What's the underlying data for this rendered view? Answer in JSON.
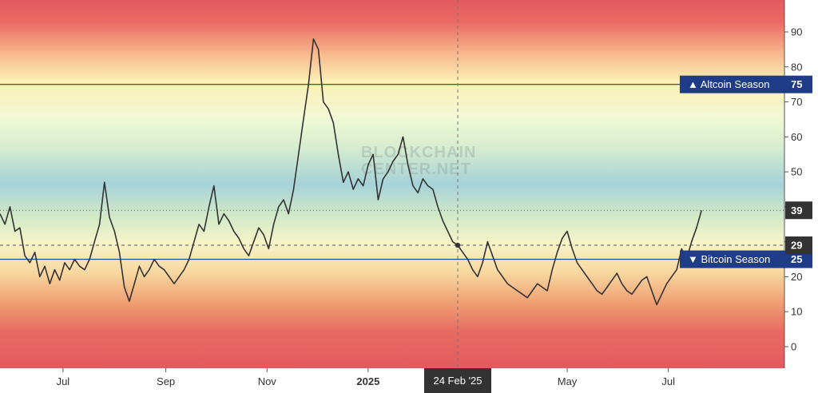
{
  "chart_data": {
    "type": "line",
    "title": "",
    "watermark": [
      "BLOCKCHAIN",
      "CENTER.NET"
    ],
    "xlabel": "",
    "ylabel": "",
    "ylim": [
      -6,
      99
    ],
    "y_ticks": [
      0,
      10,
      20,
      30,
      40,
      50,
      60,
      70,
      80,
      90
    ],
    "x_ticks": [
      {
        "label": "Jul",
        "date": "2024-07-01"
      },
      {
        "label": "Sep",
        "date": "2024-09-01"
      },
      {
        "label": "Nov",
        "date": "2024-11-01"
      },
      {
        "label": "2025",
        "date": "2025-01-01",
        "bold": true
      },
      {
        "label": "May",
        "date": "2025-05-01"
      },
      {
        "label": "Jul",
        "date": "2025-07-01"
      }
    ],
    "x_range": [
      "2024-05-24",
      "2025-09-09"
    ],
    "series": [
      {
        "color": "#333333",
        "points": [
          [
            "2024-05-24",
            38
          ],
          [
            "2024-05-27",
            35
          ],
          [
            "2024-05-30",
            40
          ],
          [
            "2024-06-02",
            33
          ],
          [
            "2024-06-05",
            34
          ],
          [
            "2024-06-08",
            26
          ],
          [
            "2024-06-11",
            24
          ],
          [
            "2024-06-14",
            27
          ],
          [
            "2024-06-17",
            20
          ],
          [
            "2024-06-20",
            23
          ],
          [
            "2024-06-23",
            18
          ],
          [
            "2024-06-26",
            22
          ],
          [
            "2024-06-29",
            19
          ],
          [
            "2024-07-02",
            24
          ],
          [
            "2024-07-05",
            22
          ],
          [
            "2024-07-08",
            25
          ],
          [
            "2024-07-11",
            23
          ],
          [
            "2024-07-14",
            22
          ],
          [
            "2024-07-17",
            25
          ],
          [
            "2024-07-20",
            30
          ],
          [
            "2024-07-23",
            35
          ],
          [
            "2024-07-26",
            47
          ],
          [
            "2024-07-29",
            37
          ],
          [
            "2024-08-01",
            33
          ],
          [
            "2024-08-04",
            27
          ],
          [
            "2024-08-07",
            17
          ],
          [
            "2024-08-10",
            13
          ],
          [
            "2024-08-13",
            18
          ],
          [
            "2024-08-16",
            23
          ],
          [
            "2024-08-19",
            20
          ],
          [
            "2024-08-22",
            22
          ],
          [
            "2024-08-25",
            25
          ],
          [
            "2024-08-28",
            23
          ],
          [
            "2024-08-31",
            22
          ],
          [
            "2024-09-03",
            20
          ],
          [
            "2024-09-06",
            18
          ],
          [
            "2024-09-09",
            20
          ],
          [
            "2024-09-12",
            22
          ],
          [
            "2024-09-15",
            25
          ],
          [
            "2024-09-18",
            30
          ],
          [
            "2024-09-21",
            35
          ],
          [
            "2024-09-24",
            33
          ],
          [
            "2024-09-27",
            40
          ],
          [
            "2024-09-30",
            46
          ],
          [
            "2024-10-03",
            35
          ],
          [
            "2024-10-06",
            38
          ],
          [
            "2024-10-09",
            36
          ],
          [
            "2024-10-12",
            33
          ],
          [
            "2024-10-15",
            31
          ],
          [
            "2024-10-18",
            28
          ],
          [
            "2024-10-21",
            26
          ],
          [
            "2024-10-24",
            30
          ],
          [
            "2024-10-27",
            34
          ],
          [
            "2024-10-30",
            32
          ],
          [
            "2024-11-02",
            28
          ],
          [
            "2024-11-05",
            35
          ],
          [
            "2024-11-08",
            40
          ],
          [
            "2024-11-11",
            42
          ],
          [
            "2024-11-14",
            38
          ],
          [
            "2024-11-17",
            45
          ],
          [
            "2024-11-20",
            55
          ],
          [
            "2024-11-23",
            65
          ],
          [
            "2024-11-26",
            75
          ],
          [
            "2024-11-29",
            88
          ],
          [
            "2024-12-02",
            85
          ],
          [
            "2024-12-05",
            70
          ],
          [
            "2024-12-08",
            68
          ],
          [
            "2024-12-11",
            64
          ],
          [
            "2024-12-14",
            55
          ],
          [
            "2024-12-17",
            47
          ],
          [
            "2024-12-20",
            50
          ],
          [
            "2024-12-23",
            45
          ],
          [
            "2024-12-26",
            48
          ],
          [
            "2024-12-29",
            46
          ],
          [
            "2025-01-01",
            52
          ],
          [
            "2025-01-04",
            55
          ],
          [
            "2025-01-07",
            42
          ],
          [
            "2025-01-10",
            48
          ],
          [
            "2025-01-13",
            50
          ],
          [
            "2025-01-16",
            53
          ],
          [
            "2025-01-19",
            55
          ],
          [
            "2025-01-22",
            60
          ],
          [
            "2025-01-25",
            52
          ],
          [
            "2025-01-28",
            46
          ],
          [
            "2025-01-31",
            44
          ],
          [
            "2025-02-03",
            48
          ],
          [
            "2025-02-06",
            46
          ],
          [
            "2025-02-09",
            45
          ],
          [
            "2025-02-12",
            40
          ],
          [
            "2025-02-15",
            36
          ],
          [
            "2025-02-18",
            33
          ],
          [
            "2025-02-21",
            30
          ],
          [
            "2025-02-24",
            29
          ],
          [
            "2025-02-27",
            27
          ],
          [
            "2025-03-02",
            25
          ],
          [
            "2025-03-05",
            22
          ],
          [
            "2025-03-08",
            20
          ],
          [
            "2025-03-11",
            24
          ],
          [
            "2025-03-14",
            30
          ],
          [
            "2025-03-17",
            26
          ],
          [
            "2025-03-20",
            22
          ],
          [
            "2025-03-23",
            20
          ],
          [
            "2025-03-26",
            18
          ],
          [
            "2025-03-29",
            17
          ],
          [
            "2025-04-01",
            16
          ],
          [
            "2025-04-04",
            15
          ],
          [
            "2025-04-07",
            14
          ],
          [
            "2025-04-10",
            16
          ],
          [
            "2025-04-13",
            18
          ],
          [
            "2025-04-16",
            17
          ],
          [
            "2025-04-19",
            16
          ],
          [
            "2025-04-22",
            22
          ],
          [
            "2025-04-25",
            27
          ],
          [
            "2025-04-28",
            31
          ],
          [
            "2025-05-01",
            33
          ],
          [
            "2025-05-04",
            28
          ],
          [
            "2025-05-07",
            24
          ],
          [
            "2025-05-10",
            22
          ],
          [
            "2025-05-13",
            20
          ],
          [
            "2025-05-16",
            18
          ],
          [
            "2025-05-19",
            16
          ],
          [
            "2025-05-22",
            15
          ],
          [
            "2025-05-25",
            17
          ],
          [
            "2025-05-28",
            19
          ],
          [
            "2025-05-31",
            21
          ],
          [
            "2025-06-03",
            18
          ],
          [
            "2025-06-06",
            16
          ],
          [
            "2025-06-09",
            15
          ],
          [
            "2025-06-12",
            17
          ],
          [
            "2025-06-15",
            19
          ],
          [
            "2025-06-18",
            20
          ],
          [
            "2025-06-21",
            16
          ],
          [
            "2025-06-24",
            12
          ],
          [
            "2025-06-27",
            15
          ],
          [
            "2025-06-30",
            18
          ],
          [
            "2025-07-03",
            20
          ],
          [
            "2025-07-06",
            22
          ],
          [
            "2025-07-09",
            28
          ],
          [
            "2025-07-12",
            25
          ],
          [
            "2025-07-15",
            30
          ],
          [
            "2025-07-18",
            34
          ],
          [
            "2025-07-21",
            39
          ]
        ]
      }
    ],
    "reference_lines": [
      {
        "value": 75,
        "label": "▲ Altcoin Season",
        "badge": "75",
        "color": "#1f3c88",
        "style": "solid"
      },
      {
        "value": 25,
        "label": "▼ Bitcoin Season",
        "badge": "25",
        "color": "#1f3c88",
        "style": "solid"
      }
    ],
    "horizontal_markers": [
      {
        "value": 39,
        "badge": "39",
        "style": "dotted"
      },
      {
        "value": 29,
        "badge": "29",
        "style": "dashed"
      }
    ],
    "crosshair": {
      "date": "2025-02-24",
      "value": 29,
      "label": "24 Feb '25"
    },
    "colors": {
      "line": "#333333",
      "reference": "#1f3c88",
      "badge_bg": "#333333",
      "label_bg": "#1f3c88",
      "gradient_top": "#e35a5f",
      "gradient_mid": "#a6d2d9",
      "gradient_bottom": "#e35a5f"
    }
  }
}
